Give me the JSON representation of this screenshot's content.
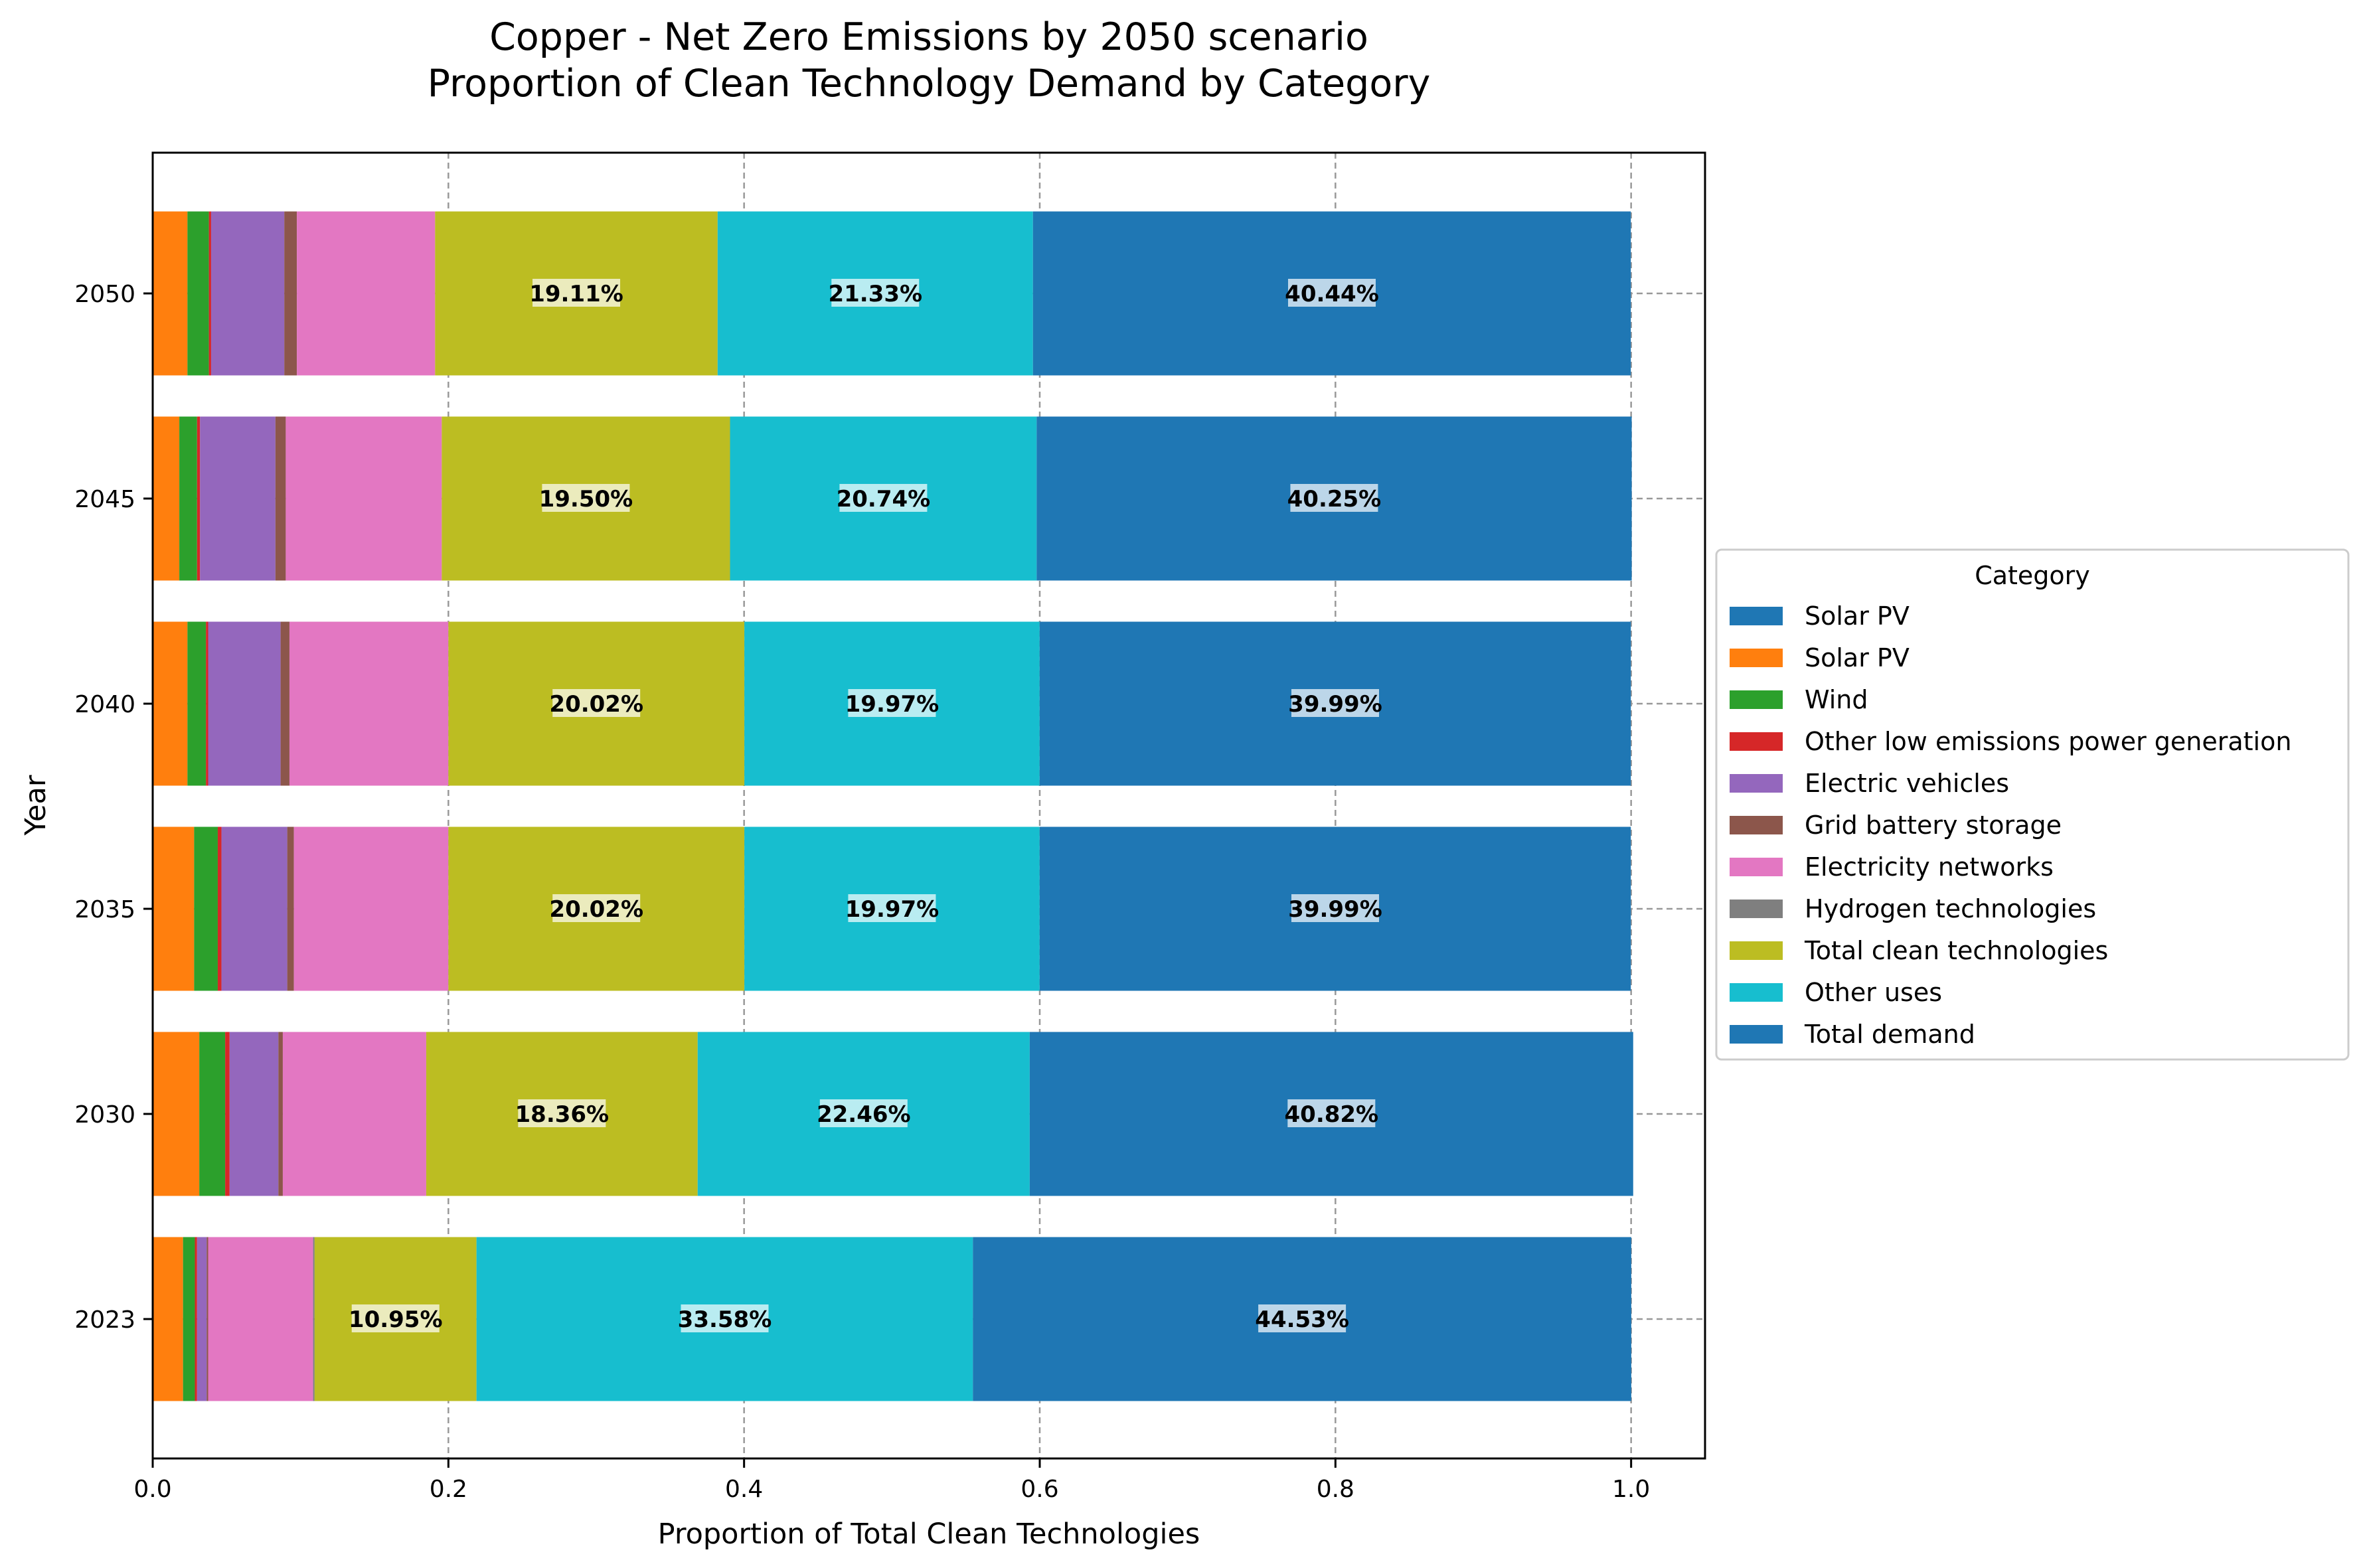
{
  "chart_data": {
    "type": "bar",
    "orientation": "horizontal",
    "stacked": true,
    "title": "Copper - Net Zero Emissions by 2050 scenario",
    "subtitle": "Proportion of Clean Technology Demand by Category",
    "xlabel": "Proportion of Total Clean Technologies",
    "ylabel": "Year",
    "xlim": [
      0.0,
      1.05
    ],
    "x_ticks": [
      "0.0",
      "0.2",
      "0.4",
      "0.6",
      "0.8",
      "1.0"
    ],
    "categories": [
      "2050",
      "2045",
      "2040",
      "2035",
      "2030",
      "2023"
    ],
    "grid": true,
    "legend": {
      "title": "Category",
      "placement": "center-right outside"
    },
    "series": [
      {
        "name": "Solar PV",
        "color": "#1f77b4",
        "values": [
          0,
          0,
          0,
          0,
          0,
          0
        ]
      },
      {
        "name": "Solar PV",
        "color": "#ff7f0e",
        "values": [
          0.0235,
          0.018,
          0.0235,
          0.028,
          0.0315,
          0.0205
        ]
      },
      {
        "name": "Wind",
        "color": "#2ca02c",
        "values": [
          0.0145,
          0.012,
          0.0125,
          0.016,
          0.0175,
          0.008
        ]
      },
      {
        "name": "Other low emissions power generation",
        "color": "#d62728",
        "values": [
          0.0015,
          0.002,
          0.0015,
          0.0025,
          0.003,
          0.0015
        ]
      },
      {
        "name": "Electric vehicles",
        "color": "#9467bd",
        "values": [
          0.0495,
          0.051,
          0.049,
          0.0445,
          0.033,
          0.0065
        ]
      },
      {
        "name": "Grid battery storage",
        "color": "#8c564b",
        "values": [
          0.0085,
          0.007,
          0.006,
          0.0045,
          0.003,
          0.001
        ]
      },
      {
        "name": "Electricity networks",
        "color": "#e377c2",
        "values": [
          0.0935,
          0.1055,
          0.1075,
          0.1045,
          0.097,
          0.071
        ]
      },
      {
        "name": "Hydrogen technologies",
        "color": "#7f7f7f",
        "values": [
          0,
          0,
          0,
          0,
          0,
          0.001
        ]
      },
      {
        "name": "Total clean technologies",
        "color": "#bcbd22",
        "values": [
          0.1911,
          0.195,
          0.2002,
          0.2002,
          0.1836,
          0.1095
        ]
      },
      {
        "name": "Other uses",
        "color": "#17becf",
        "values": [
          0.2133,
          0.2074,
          0.1997,
          0.1997,
          0.2246,
          0.3358
        ]
      },
      {
        "name": "Total demand",
        "color": "#1f77b4",
        "values": [
          0.4044,
          0.4025,
          0.3999,
          0.3999,
          0.4082,
          0.4453
        ]
      }
    ],
    "data_labels": [
      [
        "19.11%",
        "21.33%",
        "40.44%"
      ],
      [
        "19.50%",
        "20.74%",
        "40.25%"
      ],
      [
        "20.02%",
        "19.97%",
        "39.99%"
      ],
      [
        "20.02%",
        "19.97%",
        "39.99%"
      ],
      [
        "18.36%",
        "22.46%",
        "40.82%"
      ],
      [
        "10.95%",
        "33.58%",
        "44.53%"
      ]
    ]
  }
}
